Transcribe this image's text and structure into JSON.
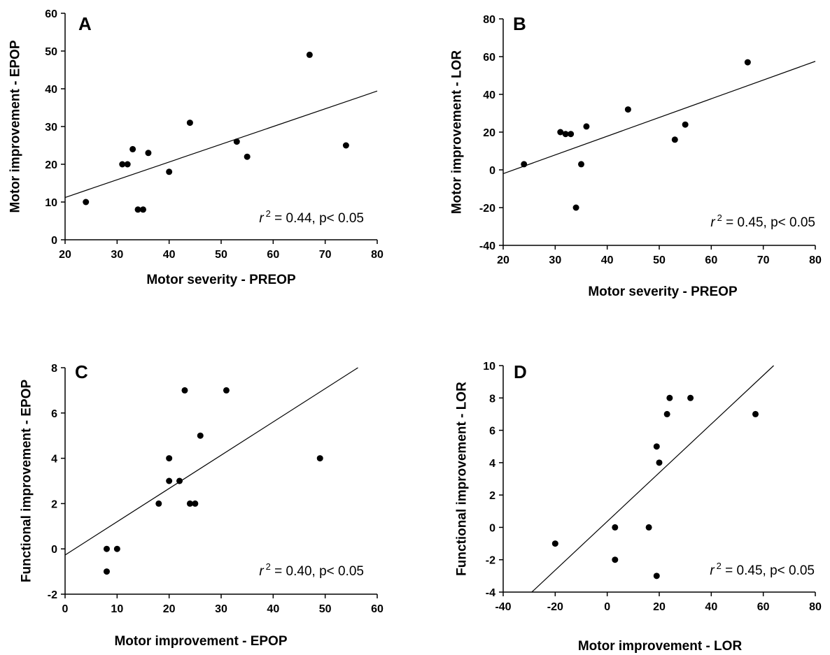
{
  "chart_data": [
    {
      "type": "scatter",
      "panel": "A",
      "xlabel": "Motor severity - PREOP",
      "ylabel": "Motor improvement - EPOP",
      "xlim": [
        20,
        80
      ],
      "ylim": [
        0,
        60
      ],
      "xticks": [
        20,
        30,
        40,
        50,
        60,
        70,
        80
      ],
      "yticks": [
        0,
        10,
        20,
        30,
        40,
        50,
        60
      ],
      "grid": false,
      "points": [
        {
          "x": 24,
          "y": 10
        },
        {
          "x": 31,
          "y": 20
        },
        {
          "x": 32,
          "y": 20
        },
        {
          "x": 33,
          "y": 24
        },
        {
          "x": 34,
          "y": 8
        },
        {
          "x": 35,
          "y": 8
        },
        {
          "x": 36,
          "y": 23
        },
        {
          "x": 40,
          "y": 18
        },
        {
          "x": 44,
          "y": 31
        },
        {
          "x": 53,
          "y": 26
        },
        {
          "x": 55,
          "y": 22
        },
        {
          "x": 67,
          "y": 49
        },
        {
          "x": 74,
          "y": 25
        }
      ],
      "fit_line": {
        "x": [
          20,
          80
        ],
        "y": [
          11.2,
          39.4
        ]
      },
      "stat_symbol": "r",
      "stat_sup": "2",
      "stat_text": " = 0.44, p< 0.05"
    },
    {
      "type": "scatter",
      "panel": "B",
      "xlabel": "Motor severity - PREOP",
      "ylabel": "Motor improvement - LOR",
      "xlim": [
        20,
        80
      ],
      "ylim": [
        -40,
        80
      ],
      "xticks": [
        20,
        30,
        40,
        50,
        60,
        70,
        80
      ],
      "yticks": [
        -40,
        -20,
        0,
        20,
        40,
        60,
        80
      ],
      "grid": false,
      "points": [
        {
          "x": 24,
          "y": 3
        },
        {
          "x": 31,
          "y": 20
        },
        {
          "x": 32,
          "y": 19
        },
        {
          "x": 33,
          "y": 19
        },
        {
          "x": 34,
          "y": -20
        },
        {
          "x": 35,
          "y": 3
        },
        {
          "x": 36,
          "y": 23
        },
        {
          "x": 44,
          "y": 32
        },
        {
          "x": 53,
          "y": 16
        },
        {
          "x": 55,
          "y": 24
        },
        {
          "x": 67,
          "y": 57
        }
      ],
      "fit_line": {
        "x": [
          20,
          80
        ],
        "y": [
          -2,
          57.5
        ]
      },
      "stat_symbol": "r",
      "stat_sup": "2",
      "stat_text": " = 0.45, p< 0.05"
    },
    {
      "type": "scatter",
      "panel": "C",
      "xlabel": "Motor improvement - EPOP",
      "ylabel": "Functional improvement - EPOP",
      "xlim": [
        0,
        60
      ],
      "ylim": [
        -2,
        8
      ],
      "xticks": [
        0,
        10,
        20,
        30,
        40,
        50,
        60
      ],
      "yticks": [
        -2,
        0,
        2,
        4,
        6,
        8
      ],
      "grid": false,
      "points": [
        {
          "x": 8,
          "y": -1
        },
        {
          "x": 8,
          "y": 0
        },
        {
          "x": 10,
          "y": 0
        },
        {
          "x": 18,
          "y": 2
        },
        {
          "x": 20,
          "y": 3
        },
        {
          "x": 20,
          "y": 4
        },
        {
          "x": 22,
          "y": 3
        },
        {
          "x": 23,
          "y": 7
        },
        {
          "x": 24,
          "y": 2
        },
        {
          "x": 25,
          "y": 2
        },
        {
          "x": 26,
          "y": 5
        },
        {
          "x": 31,
          "y": 7
        },
        {
          "x": 49,
          "y": 4
        }
      ],
      "fit_line": {
        "x": [
          0,
          56.3
        ],
        "y": [
          -0.27,
          8
        ]
      },
      "stat_symbol": "r",
      "stat_sup": "2",
      "stat_text": " = 0.40, p< 0.05"
    },
    {
      "type": "scatter",
      "panel": "D",
      "xlabel": "Motor improvement - LOR",
      "ylabel": "Functional improvement - LOR",
      "xlim": [
        -40,
        80
      ],
      "ylim": [
        -4,
        10
      ],
      "xticks": [
        -40,
        -20,
        0,
        20,
        40,
        60,
        80
      ],
      "yticks": [
        -4,
        -2,
        0,
        2,
        4,
        6,
        8,
        10
      ],
      "grid": false,
      "points": [
        {
          "x": -20,
          "y": -1
        },
        {
          "x": 3,
          "y": 0
        },
        {
          "x": 3,
          "y": -2
        },
        {
          "x": 16,
          "y": 0
        },
        {
          "x": 19,
          "y": 5
        },
        {
          "x": 19,
          "y": -3
        },
        {
          "x": 20,
          "y": 4
        },
        {
          "x": 23,
          "y": 7
        },
        {
          "x": 24,
          "y": 8
        },
        {
          "x": 32,
          "y": 8
        },
        {
          "x": 57,
          "y": 7
        }
      ],
      "fit_line": {
        "x": [
          -29,
          64
        ],
        "y": [
          -4,
          10
        ]
      },
      "stat_symbol": "r",
      "stat_sup": "2",
      "stat_text": " = 0.45, p< 0.05"
    }
  ]
}
